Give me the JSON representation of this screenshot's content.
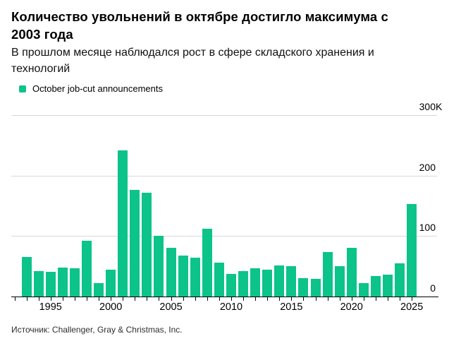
{
  "header": {
    "title": "Количество увольнений в октябре достигло максимума с 2003 года",
    "subtitle": "В прошлом месяце наблюдался рост в сфере складского хранения и технологий"
  },
  "legend": {
    "label": "October job-cut announcements"
  },
  "source_note": "Источник: Challenger, Gray & Christmas, Inc.",
  "colors": {
    "bar": "#0cc38a",
    "gridline": "#d8d8d8",
    "axis": "#000000",
    "text": "#000000"
  },
  "chart_data": {
    "type": "bar",
    "title": "Количество увольнений в октябре достигло максимума с 2003 года",
    "subtitle": "В прошлом месяце наблюдался рост в сфере складского хранения и технологий",
    "series_name": "October job-cut announcements",
    "unit": "thousands of announced job cuts",
    "x": [
      1993,
      1994,
      1995,
      1996,
      1997,
      1998,
      1999,
      2000,
      2001,
      2002,
      2003,
      2004,
      2005,
      2006,
      2007,
      2008,
      2009,
      2010,
      2011,
      2012,
      2013,
      2014,
      2015,
      2016,
      2017,
      2018,
      2019,
      2020,
      2021,
      2022,
      2023,
      2024,
      2025
    ],
    "values": [
      66,
      42,
      41,
      48,
      47,
      92,
      22,
      45,
      242,
      176,
      172,
      101,
      81,
      68,
      64,
      112,
      56,
      38,
      42,
      47,
      45,
      51,
      50,
      30,
      29,
      74,
      50,
      81,
      22,
      34,
      36,
      55,
      153
    ],
    "ylim": [
      0,
      300
    ],
    "yticks": [
      {
        "value": 0,
        "label": "0"
      },
      {
        "value": 100,
        "label": "100"
      },
      {
        "value": 200,
        "label": "200"
      },
      {
        "value": 300,
        "label": "300",
        "suffix": "K"
      }
    ],
    "xticks_labeled": [
      1995,
      2000,
      2005,
      2010,
      2015,
      2020,
      2025
    ],
    "grid": "horizontal",
    "legend_position": "top-left",
    "source": "Challenger, Gray & Christmas, Inc."
  }
}
